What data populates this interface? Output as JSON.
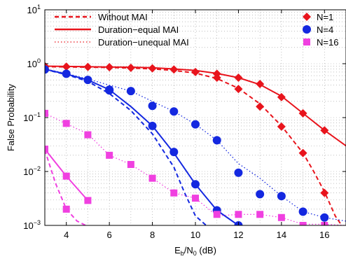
{
  "chart_data": {
    "type": "line",
    "x_label": {
      "main": "E",
      "sub1": "b",
      "mid": "/N",
      "sub2": "0",
      "tail": " (dB)"
    },
    "y_label": "False Probability",
    "xlim": [
      3,
      17
    ],
    "ylim": [
      0.001,
      10
    ],
    "y_scale": "log",
    "grid": true,
    "x_ticks": [
      4,
      6,
      8,
      10,
      12,
      14,
      16
    ],
    "y_ticks": [
      {
        "value": 0.001,
        "base": "10",
        "exp": "−3"
      },
      {
        "value": 0.01,
        "base": "10",
        "exp": "−2"
      },
      {
        "value": 0.1,
        "base": "10",
        "exp": "−1"
      },
      {
        "value": 1,
        "base": "10",
        "exp": "0"
      },
      {
        "value": 10,
        "base": "10",
        "exp": "1"
      }
    ],
    "line_legend": [
      {
        "label": "Without MAI",
        "style": "dashed"
      },
      {
        "label": "Duration−equal MAI",
        "style": "solid"
      },
      {
        "label": "Duration−unequal MAI",
        "style": "dotted"
      }
    ],
    "marker_legend": [
      {
        "label": "N=1",
        "marker": "diamond",
        "color": "#e8141c"
      },
      {
        "label": "N=4",
        "marker": "circle",
        "color": "#1428e0"
      },
      {
        "label": "N=16",
        "marker": "square",
        "color": "#f040e0"
      }
    ],
    "colors": {
      "N1": "#e8141c",
      "N4": "#1428e0",
      "N16": "#f040e0"
    },
    "series": [
      {
        "group": "N1",
        "style": "dashed",
        "x": [
          3,
          4,
          5,
          6,
          7,
          8,
          9,
          10,
          11,
          12,
          13,
          14,
          15,
          15.5,
          16,
          16.5,
          16.8
        ],
        "y": [
          0.88,
          0.87,
          0.86,
          0.85,
          0.83,
          0.8,
          0.75,
          0.67,
          0.53,
          0.35,
          0.18,
          0.07,
          0.022,
          0.01,
          0.0042,
          0.0015,
          0.001
        ]
      },
      {
        "group": "N1",
        "style": "solid",
        "x": [
          3,
          4,
          5,
          6,
          7,
          8,
          9,
          10,
          11,
          12,
          13,
          14,
          15,
          16,
          17
        ],
        "y": [
          0.9,
          0.89,
          0.88,
          0.87,
          0.86,
          0.84,
          0.8,
          0.75,
          0.66,
          0.55,
          0.41,
          0.25,
          0.12,
          0.058,
          0.03
        ]
      },
      {
        "group": "N1",
        "style": "dotted",
        "x": [
          3,
          4,
          5,
          6,
          7,
          8,
          9,
          10,
          11,
          12,
          13,
          14,
          15,
          16,
          17
        ],
        "y": [
          0.9,
          0.89,
          0.88,
          0.87,
          0.86,
          0.84,
          0.8,
          0.75,
          0.66,
          0.55,
          0.41,
          0.25,
          0.12,
          0.058,
          0.03
        ]
      },
      {
        "group": "N4",
        "style": "dashed",
        "x": [
          3,
          4,
          5,
          6,
          7,
          8,
          9,
          9.5,
          10,
          10.5
        ],
        "y": [
          0.78,
          0.63,
          0.47,
          0.28,
          0.135,
          0.05,
          0.012,
          0.004,
          0.0015,
          0.001
        ]
      },
      {
        "group": "N4",
        "style": "solid",
        "x": [
          3,
          4,
          5,
          6,
          7,
          8,
          9,
          10,
          11,
          12
        ],
        "y": [
          0.79,
          0.64,
          0.5,
          0.33,
          0.16,
          0.07,
          0.022,
          0.0058,
          0.0019,
          0.001
        ]
      },
      {
        "group": "N4",
        "style": "dotted",
        "x": [
          3,
          4,
          5,
          6,
          7,
          8,
          9,
          10,
          11,
          12,
          13,
          14,
          15,
          16,
          17
        ],
        "y": [
          0.8,
          0.66,
          0.52,
          0.4,
          0.31,
          0.2,
          0.13,
          0.075,
          0.038,
          0.014,
          0.0075,
          0.0035,
          0.0018,
          0.0014,
          0.0012
        ]
      },
      {
        "group": "N16",
        "style": "dashed",
        "x": [
          3,
          3.5,
          4,
          4.5,
          4.9
        ],
        "y": [
          0.025,
          0.006,
          0.002,
          0.0012,
          0.001
        ]
      },
      {
        "group": "N16",
        "style": "solid",
        "x": [
          3,
          4,
          5
        ],
        "y": [
          0.026,
          0.0082,
          0.0029
        ]
      },
      {
        "group": "N16",
        "style": "dotted",
        "x": [
          3,
          4,
          5,
          6,
          7,
          8,
          9,
          10,
          11,
          12,
          13,
          14,
          15,
          16,
          17
        ],
        "y": [
          0.12,
          0.077,
          0.05,
          0.02,
          0.0135,
          0.0075,
          0.004,
          0.0032,
          0.0015,
          0.0016,
          0.0016,
          0.0014,
          0.00105,
          0.00105,
          0.001
        ]
      }
    ],
    "markers": [
      {
        "group": "N1",
        "marker": "diamond",
        "x": [
          3,
          4,
          5,
          6,
          7,
          8,
          9,
          10,
          11,
          12,
          13,
          14,
          15,
          16
        ],
        "y": [
          0.9,
          0.88,
          0.87,
          0.86,
          0.84,
          0.82,
          0.78,
          0.7,
          0.55,
          0.34,
          0.16,
          0.068,
          0.022,
          0.004
        ]
      },
      {
        "group": "N1",
        "marker": "diamond",
        "x": [
          11,
          12,
          13,
          14,
          15,
          16
        ],
        "y": [
          0.65,
          0.55,
          0.42,
          0.24,
          0.12,
          0.058
        ]
      },
      {
        "group": "N4",
        "marker": "circle",
        "x": [
          3,
          4,
          5,
          6,
          7,
          8,
          9,
          10,
          11,
          12,
          13,
          14,
          15,
          16
        ],
        "y": [
          0.78,
          0.65,
          0.5,
          0.32,
          0.31,
          0.165,
          0.13,
          0.075,
          0.038,
          0.0095,
          0.0038,
          0.0035,
          0.0018,
          0.0014
        ]
      },
      {
        "group": "N4",
        "marker": "circle",
        "x": [
          6,
          8,
          9,
          10,
          11,
          12
        ],
        "y": [
          0.33,
          0.07,
          0.023,
          0.0058,
          0.0019,
          0.001
        ]
      },
      {
        "group": "N16",
        "marker": "square",
        "x": [
          3,
          4,
          5,
          6,
          7,
          8,
          9,
          10,
          11,
          12,
          13,
          14,
          15,
          16
        ],
        "y": [
          0.12,
          0.078,
          0.048,
          0.02,
          0.0135,
          0.0075,
          0.004,
          0.0032,
          0.0016,
          0.0016,
          0.0016,
          0.0014,
          0.001,
          0.001
        ]
      },
      {
        "group": "N16",
        "marker": "square",
        "x": [
          3,
          4,
          5
        ],
        "y": [
          0.026,
          0.0082,
          0.0029
        ]
      },
      {
        "group": "N16",
        "marker": "square",
        "x": [
          4
        ],
        "y": [
          0.002
        ]
      }
    ]
  }
}
